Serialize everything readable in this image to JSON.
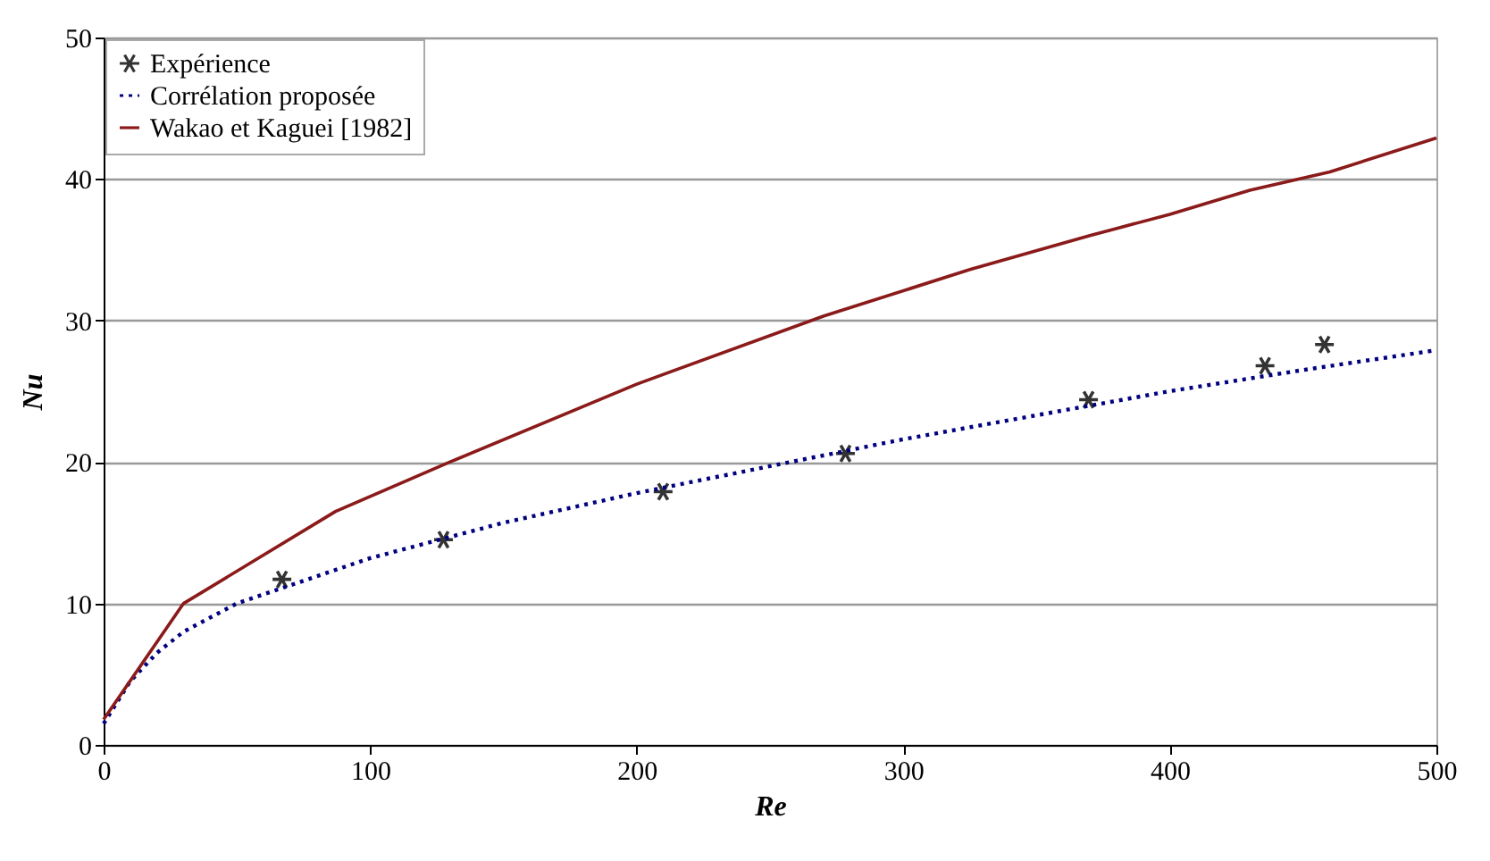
{
  "chart_data": {
    "type": "line",
    "xlabel": "Re",
    "ylabel": "Nu",
    "xlim": [
      0,
      500
    ],
    "ylim": [
      0,
      50
    ],
    "xticks": [
      0,
      100,
      200,
      300,
      400,
      500
    ],
    "yticks": [
      0,
      10,
      20,
      30,
      40,
      50
    ],
    "grid": "y",
    "legend": "top left",
    "series": [
      {
        "name": "Expérience",
        "type": "scatter",
        "marker": "cross",
        "color": "#333333",
        "x": [
          66.9,
          127.5,
          209.9,
          278.3,
          369.5,
          435.7,
          458
        ],
        "values": [
          11.7,
          14.5,
          17.9,
          20.6,
          24.4,
          26.8,
          28.3
        ]
      },
      {
        "name": "Corrélation proposée",
        "line_style": "dotted",
        "color": "#000080",
        "x": [
          0,
          10,
          20,
          30,
          50,
          100,
          150,
          200,
          250,
          300,
          350,
          400,
          450,
          500
        ],
        "values": [
          1.5,
          4.5,
          6.5,
          8,
          10,
          13.2,
          15.7,
          17.8,
          19.7,
          21.6,
          23.3,
          25,
          26.5,
          27.9
        ]
      },
      {
        "name": "Wakao et Kaguei [1982]",
        "line_style": "solid",
        "color": "#8b1a1a",
        "x": [
          0,
          30,
          87,
          130,
          200,
          270,
          325,
          370,
          400,
          430,
          460,
          500
        ],
        "values": [
          1.8,
          10,
          16.5,
          20,
          25.5,
          30.3,
          33.6,
          36,
          37.5,
          39.2,
          40.5,
          42.9
        ]
      }
    ]
  }
}
